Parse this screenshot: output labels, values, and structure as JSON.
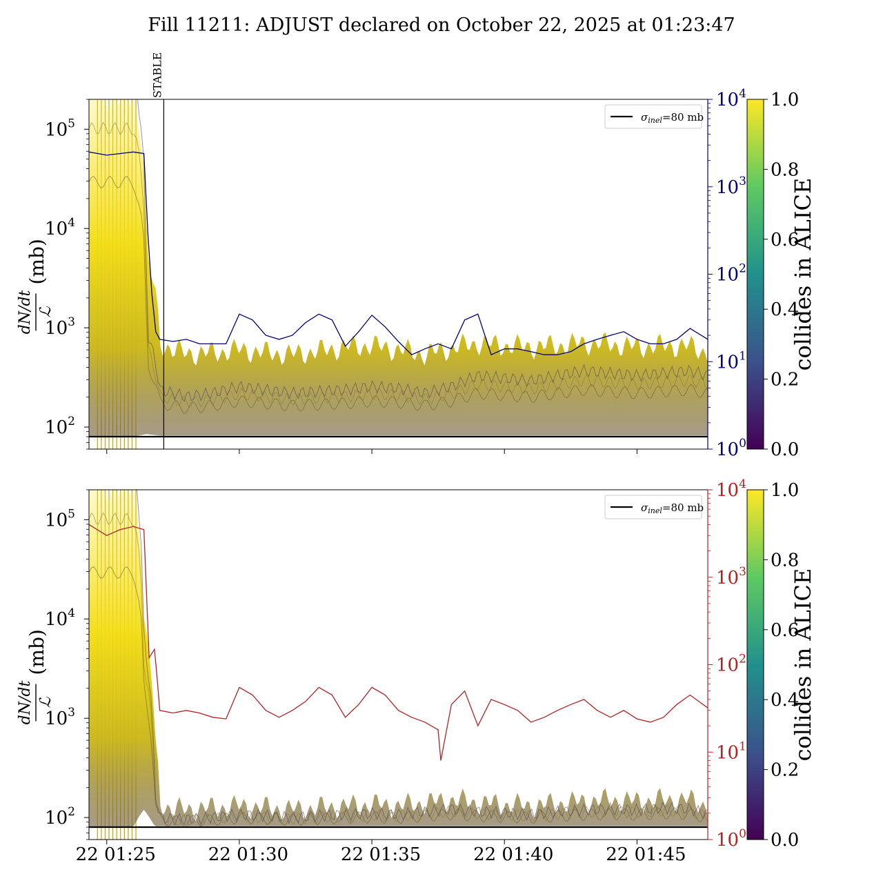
{
  "title": "Fill 11211: ADJUST declared on October 22, 2025 at 01:23:47",
  "colors": {
    "left_line_top": "#00007a",
    "left_line_bottom": "#b22222",
    "threshold": "#000000",
    "viridis": [
      "#440154",
      "#3b528b",
      "#21918c",
      "#5ec962",
      "#fde725"
    ]
  },
  "chart_data": [
    {
      "type": "line",
      "panel": "top",
      "ylabel_left": "dN/dt / ℒ (mb)",
      "yscale_left": "log",
      "ylim_left": [
        60,
        200000
      ],
      "left_ticks": [
        {
          "v": 100,
          "exp": "2"
        },
        {
          "v": 1000,
          "exp": "3"
        },
        {
          "v": 10000,
          "exp": "4"
        },
        {
          "v": 100000,
          "exp": "5"
        }
      ],
      "yscale_right": "log",
      "ylim_right": [
        1,
        10000
      ],
      "right_ticks": [
        {
          "v": 1,
          "exp": "0"
        },
        {
          "v": 10,
          "exp": "1"
        },
        {
          "v": 100,
          "exp": "2"
        },
        {
          "v": 1000,
          "exp": "3"
        },
        {
          "v": 10000,
          "exp": "4"
        }
      ],
      "right_axis_color": "#00007a",
      "xlim_min": [
        84.33,
        107.67
      ],
      "annotation": {
        "label": "STABLE",
        "x_min": 87.15
      },
      "legend": {
        "label": "σinel=80 mb",
        "main": "σ",
        "sub": "inel",
        "rest": "=80 mb",
        "placement": "top-right"
      },
      "threshold": 80,
      "colorbar": {
        "label": "collides in ALICE",
        "ticks": [
          "0.0",
          "0.2",
          "0.4",
          "0.6",
          "0.8",
          "1.0"
        ]
      },
      "ratio_series": {
        "x": [
          84.33,
          85.0,
          85.5,
          86.0,
          86.4,
          86.55,
          86.7,
          86.85,
          87.0,
          87.5,
          88.0,
          88.5,
          89.0,
          89.5,
          90.0,
          90.5,
          91.0,
          91.5,
          92.0,
          92.5,
          93.0,
          93.5,
          94.0,
          94.5,
          95.0,
          95.5,
          96.0,
          96.5,
          97.0,
          97.5,
          98.0,
          98.5,
          99.0,
          99.5,
          100.0,
          100.5,
          101.0,
          101.5,
          102.0,
          102.5,
          103.0,
          103.5,
          104.0,
          104.5,
          105.0,
          105.5,
          106.0,
          106.5,
          107.0,
          107.67
        ],
        "y": [
          2500,
          2300,
          2400,
          2500,
          2400,
          300,
          60,
          22,
          18,
          17,
          18,
          16,
          16,
          16,
          35,
          30,
          20,
          18,
          20,
          28,
          35,
          30,
          15,
          22,
          34,
          25,
          17,
          12,
          14,
          16,
          14,
          30,
          35,
          12,
          14,
          14,
          13,
          12,
          12,
          13,
          16,
          18,
          20,
          22,
          18,
          16,
          16,
          18,
          24,
          18
        ]
      },
      "band": {
        "x": [
          84.33,
          85.0,
          86.0,
          86.5,
          87.0,
          87.5,
          88.0,
          89.0,
          90.0,
          91.0,
          92.0,
          93.0,
          94.0,
          95.0,
          96.0,
          97.0,
          98.0,
          99.0,
          100.0,
          101.0,
          102.0,
          103.0,
          104.0,
          105.0,
          106.0,
          107.0,
          107.67
        ],
        "low": [
          80,
          80,
          80,
          85,
          82,
          82,
          82,
          82,
          82,
          82,
          82,
          82,
          82,
          82,
          82,
          82,
          82,
          82,
          82,
          82,
          82,
          82,
          82,
          82,
          82,
          82,
          82
        ],
        "mid": [
          40000,
          40000,
          40000,
          500,
          180,
          170,
          160,
          170,
          190,
          180,
          170,
          175,
          180,
          190,
          185,
          170,
          190,
          230,
          220,
          210,
          230,
          250,
          240,
          230,
          240,
          250,
          230
        ],
        "high": [
          200000,
          200000,
          200000,
          5000,
          700,
          600,
          550,
          560,
          600,
          560,
          540,
          580,
          640,
          660,
          600,
          540,
          620,
          700,
          660,
          640,
          660,
          700,
          680,
          640,
          660,
          650,
          560
        ]
      }
    },
    {
      "type": "line",
      "panel": "bottom",
      "ylabel_left": "dN/dt / ℒ (mb)",
      "yscale_left": "log",
      "ylim_left": [
        60,
        200000
      ],
      "left_ticks": [
        {
          "v": 100,
          "exp": "2"
        },
        {
          "v": 1000,
          "exp": "3"
        },
        {
          "v": 10000,
          "exp": "4"
        },
        {
          "v": 100000,
          "exp": "5"
        }
      ],
      "yscale_right": "log",
      "ylim_right": [
        1,
        10000
      ],
      "right_ticks": [
        {
          "v": 1,
          "exp": "0"
        },
        {
          "v": 10,
          "exp": "1"
        },
        {
          "v": 100,
          "exp": "2"
        },
        {
          "v": 1000,
          "exp": "3"
        },
        {
          "v": 10000,
          "exp": "4"
        }
      ],
      "right_axis_color": "#b22222",
      "xlim_min": [
        84.33,
        107.67
      ],
      "xticks": [
        {
          "v": 85,
          "label": "22 01:25"
        },
        {
          "v": 90,
          "label": "22 01:30"
        },
        {
          "v": 95,
          "label": "22 01:35"
        },
        {
          "v": 100,
          "label": "22 01:40"
        },
        {
          "v": 105,
          "label": "22 01:45"
        }
      ],
      "legend": {
        "label": "σinel=80 mb",
        "main": "σ",
        "sub": "inel",
        "rest": "=80 mb",
        "placement": "top-right"
      },
      "threshold": 80,
      "colorbar": {
        "label": "collides in ALICE",
        "ticks": [
          "0.0",
          "0.2",
          "0.4",
          "0.6",
          "0.8",
          "1.0"
        ]
      },
      "ratio_series": {
        "x": [
          84.33,
          85.0,
          85.5,
          86.0,
          86.4,
          86.6,
          86.8,
          86.9,
          87.0,
          87.5,
          88.0,
          88.5,
          89.0,
          89.5,
          90.0,
          90.5,
          91.0,
          91.5,
          92.0,
          92.5,
          93.0,
          93.5,
          94.0,
          94.5,
          95.0,
          95.5,
          96.0,
          96.5,
          97.0,
          97.5,
          97.6,
          98.0,
          98.5,
          99.0,
          99.5,
          100.0,
          100.5,
          101.0,
          101.5,
          102.0,
          102.5,
          103.0,
          103.5,
          104.0,
          104.5,
          105.0,
          105.5,
          106.0,
          106.5,
          107.0,
          107.67
        ],
        "y": [
          4000,
          3000,
          3500,
          3800,
          3500,
          120,
          150,
          70,
          30,
          28,
          30,
          28,
          25,
          24,
          55,
          45,
          30,
          25,
          30,
          38,
          55,
          45,
          25,
          35,
          55,
          45,
          30,
          25,
          22,
          18,
          8,
          35,
          50,
          20,
          40,
          35,
          30,
          22,
          25,
          30,
          35,
          40,
          30,
          25,
          30,
          24,
          22,
          25,
          35,
          45,
          32
        ]
      },
      "band": {
        "x": [
          84.33,
          85.0,
          86.0,
          86.4,
          86.8,
          87.0,
          87.5,
          88.0,
          89.0,
          90.0,
          91.0,
          92.0,
          93.0,
          94.0,
          95.0,
          96.0,
          97.0,
          98.0,
          99.0,
          100.0,
          101.0,
          102.0,
          103.0,
          104.0,
          105.0,
          106.0,
          107.0,
          107.67
        ],
        "low": [
          80,
          80,
          80,
          120,
          82,
          82,
          82,
          82,
          82,
          82,
          82,
          82,
          82,
          82,
          82,
          82,
          82,
          82,
          82,
          82,
          82,
          82,
          82,
          82,
          82,
          82,
          82,
          82
        ],
        "mid": [
          40000,
          40000,
          40000,
          2000,
          150,
          95,
          92,
          92,
          95,
          100,
          98,
          95,
          98,
          100,
          102,
          100,
          105,
          110,
          105,
          103,
          100,
          105,
          108,
          110,
          108,
          112,
          110,
          100
        ],
        "high": [
          200000,
          200000,
          200000,
          8000,
          600,
          140,
          120,
          120,
          125,
          130,
          125,
          120,
          125,
          130,
          135,
          130,
          140,
          150,
          140,
          135,
          130,
          138,
          145,
          150,
          145,
          150,
          150,
          130
        ]
      }
    }
  ]
}
